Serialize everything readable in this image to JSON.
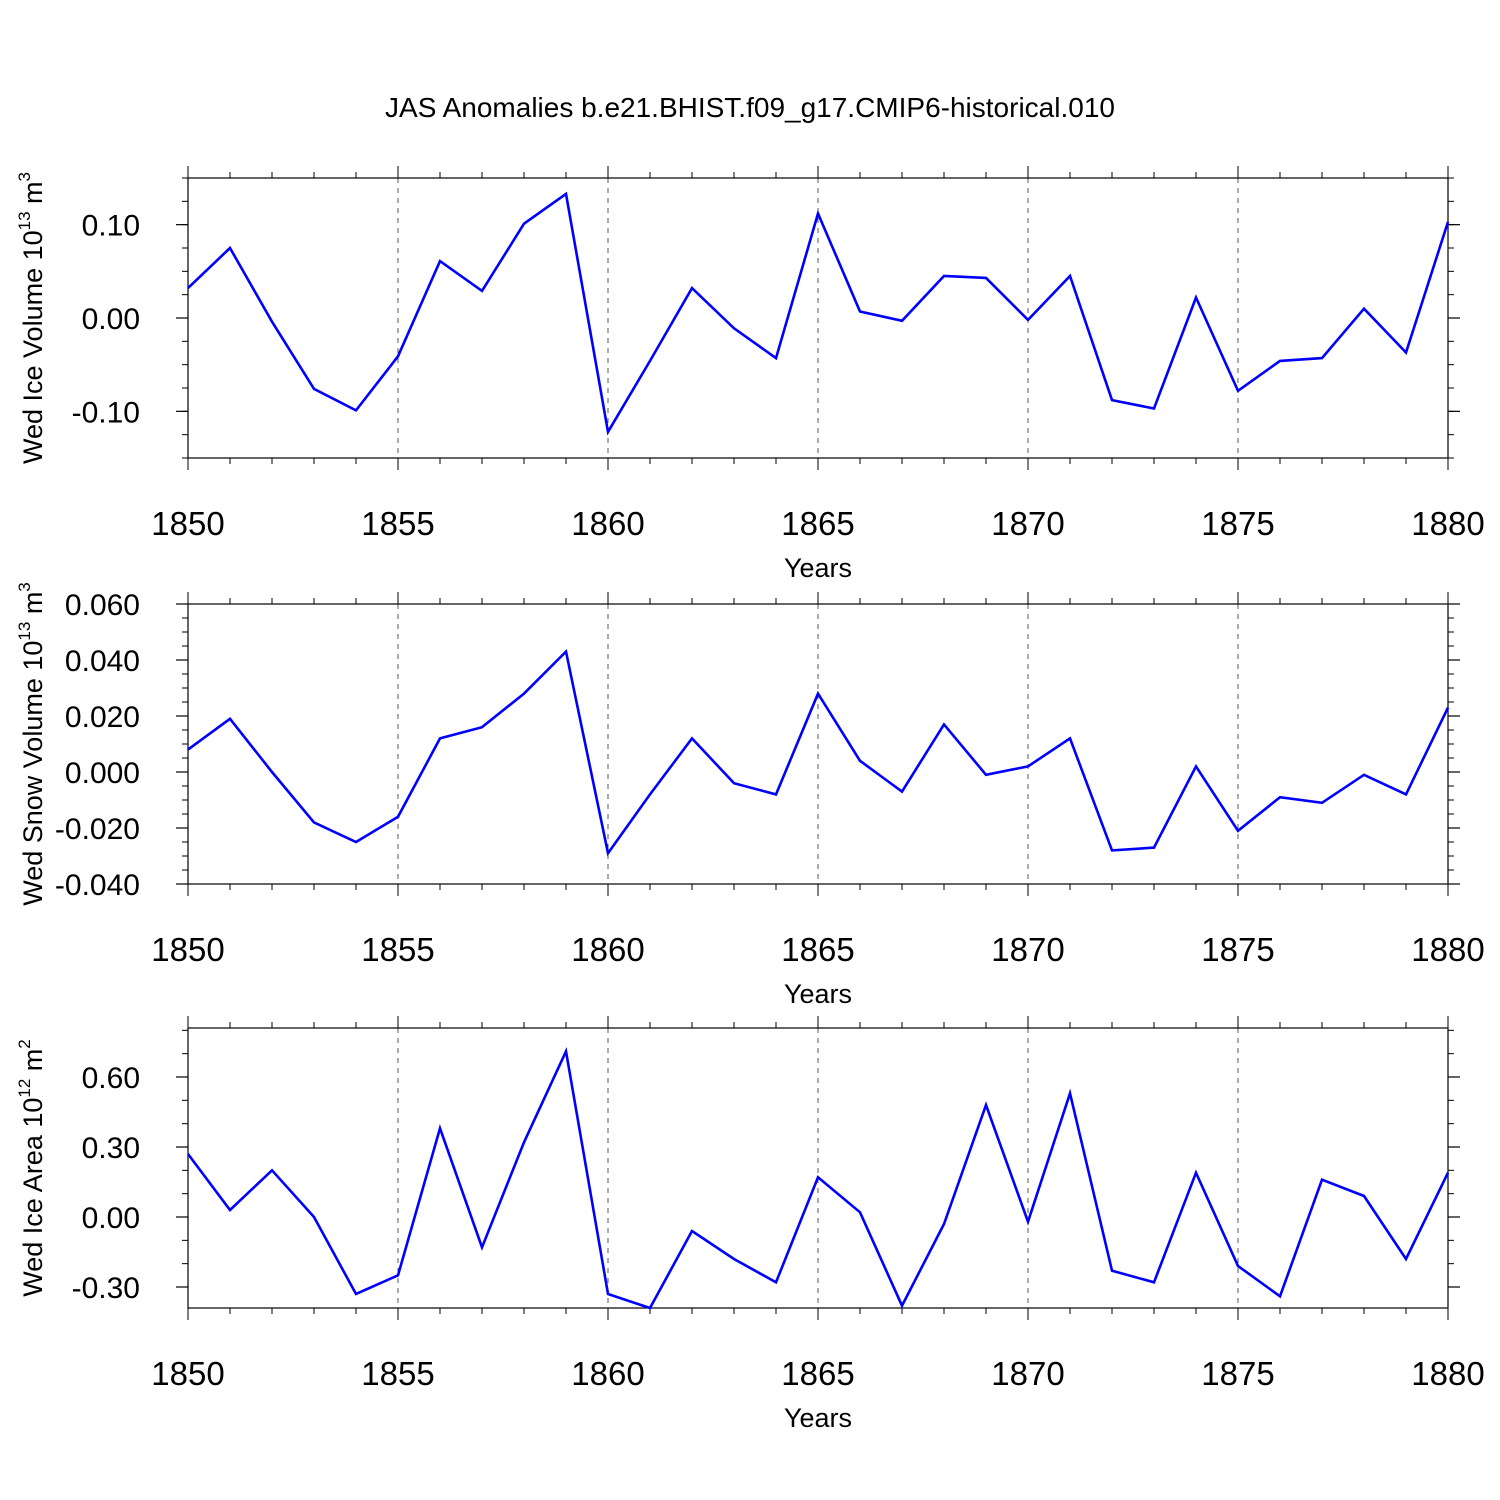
{
  "figure_title": "JAS Anomalies b.e21.BHIST.f09_g17.CMIP6-historical.010",
  "colors": {
    "line": "#0000ff",
    "axis": "#000000",
    "grid": "#000000"
  },
  "chart_data": [
    {
      "type": "line",
      "xlabel": "Years",
      "ylabel": {
        "text": "Wed Ice Volume 10",
        "sup": "13",
        "unit": " m",
        "unit_sup": "3"
      },
      "xlim": [
        1850,
        1880
      ],
      "ylim": [
        -0.15,
        0.15
      ],
      "xticks": [
        "1850",
        "1855",
        "1860",
        "1865",
        "1870",
        "1875",
        "1880"
      ],
      "yticks": [
        {
          "value": -0.1,
          "label": "-0.10"
        },
        {
          "value": 0.0,
          "label": "0.00"
        },
        {
          "value": 0.1,
          "label": "0.10"
        }
      ],
      "y_minor_step": 0.025,
      "grid": "vertical dashed at major x ticks",
      "series": [
        {
          "name": "Wed Ice Volume",
          "x": [
            1850,
            1851,
            1852,
            1853,
            1854,
            1855,
            1856,
            1857,
            1858,
            1859,
            1860,
            1861,
            1862,
            1863,
            1864,
            1865,
            1866,
            1867,
            1868,
            1869,
            1870,
            1871,
            1872,
            1873,
            1874,
            1875,
            1876,
            1877,
            1878,
            1879,
            1880
          ],
          "values": [
            0.032,
            0.075,
            -0.004,
            -0.076,
            -0.099,
            -0.041,
            0.061,
            0.029,
            0.101,
            0.133,
            -0.122,
            -0.046,
            0.032,
            -0.011,
            -0.043,
            0.112,
            0.007,
            -0.003,
            0.045,
            0.043,
            -0.002,
            0.045,
            -0.088,
            -0.097,
            0.022,
            -0.078,
            -0.046,
            -0.043,
            0.01,
            -0.037,
            0.103
          ]
        }
      ]
    },
    {
      "type": "line",
      "xlabel": "Years",
      "ylabel": {
        "text": "Wed Snow Volume 10",
        "sup": "13",
        "unit": " m",
        "unit_sup": "3"
      },
      "xlim": [
        1850,
        1880
      ],
      "ylim": [
        -0.04,
        0.06
      ],
      "xticks": [
        "1850",
        "1855",
        "1860",
        "1865",
        "1870",
        "1875",
        "1880"
      ],
      "yticks": [
        {
          "value": -0.04,
          "label": "-0.040"
        },
        {
          "value": -0.02,
          "label": "-0.020"
        },
        {
          "value": 0.0,
          "label": "0.000"
        },
        {
          "value": 0.02,
          "label": "0.020"
        },
        {
          "value": 0.04,
          "label": "0.040"
        },
        {
          "value": 0.06,
          "label": "0.060"
        }
      ],
      "y_minor_step": 0.005,
      "grid": "vertical dashed at major x ticks",
      "series": [
        {
          "name": "Wed Snow Volume",
          "x": [
            1850,
            1851,
            1852,
            1853,
            1854,
            1855,
            1856,
            1857,
            1858,
            1859,
            1860,
            1861,
            1862,
            1863,
            1864,
            1865,
            1866,
            1867,
            1868,
            1869,
            1870,
            1871,
            1872,
            1873,
            1874,
            1875,
            1876,
            1877,
            1878,
            1879,
            1880
          ],
          "values": [
            0.008,
            0.019,
            0.0,
            -0.018,
            -0.025,
            -0.016,
            0.012,
            0.016,
            0.028,
            0.043,
            -0.029,
            -0.008,
            0.012,
            -0.004,
            -0.008,
            0.028,
            0.004,
            -0.007,
            0.017,
            -0.001,
            0.002,
            0.012,
            -0.028,
            -0.027,
            0.002,
            -0.021,
            -0.009,
            -0.011,
            -0.001,
            -0.008,
            0.023
          ]
        }
      ]
    },
    {
      "type": "line",
      "xlabel": "Years",
      "ylabel": {
        "text": "Wed Ice Area 10",
        "sup": "12",
        "unit": " m",
        "unit_sup": "2"
      },
      "xlim": [
        1850,
        1880
      ],
      "ylim": [
        -0.39,
        0.81
      ],
      "xticks": [
        "1850",
        "1855",
        "1860",
        "1865",
        "1870",
        "1875",
        "1880"
      ],
      "yticks": [
        {
          "value": -0.3,
          "label": "-0.30"
        },
        {
          "value": 0.0,
          "label": "0.00"
        },
        {
          "value": 0.3,
          "label": "0.30"
        },
        {
          "value": 0.6,
          "label": "0.60"
        }
      ],
      "y_minor_step": 0.1,
      "grid": "vertical dashed at major x ticks",
      "series": [
        {
          "name": "Wed Ice Area",
          "x": [
            1850,
            1851,
            1852,
            1853,
            1854,
            1855,
            1856,
            1857,
            1858,
            1859,
            1860,
            1861,
            1862,
            1863,
            1864,
            1865,
            1866,
            1867,
            1868,
            1869,
            1870,
            1871,
            1872,
            1873,
            1874,
            1875,
            1876,
            1877,
            1878,
            1879,
            1880
          ],
          "values": [
            0.27,
            0.03,
            0.2,
            0.0,
            -0.33,
            -0.25,
            0.38,
            -0.13,
            0.32,
            0.71,
            -0.33,
            -0.39,
            -0.06,
            -0.18,
            -0.28,
            0.17,
            0.02,
            -0.38,
            -0.03,
            0.48,
            -0.02,
            0.53,
            -0.23,
            -0.28,
            0.19,
            -0.21,
            -0.34,
            0.16,
            0.09,
            -0.18,
            0.19
          ]
        }
      ]
    }
  ]
}
